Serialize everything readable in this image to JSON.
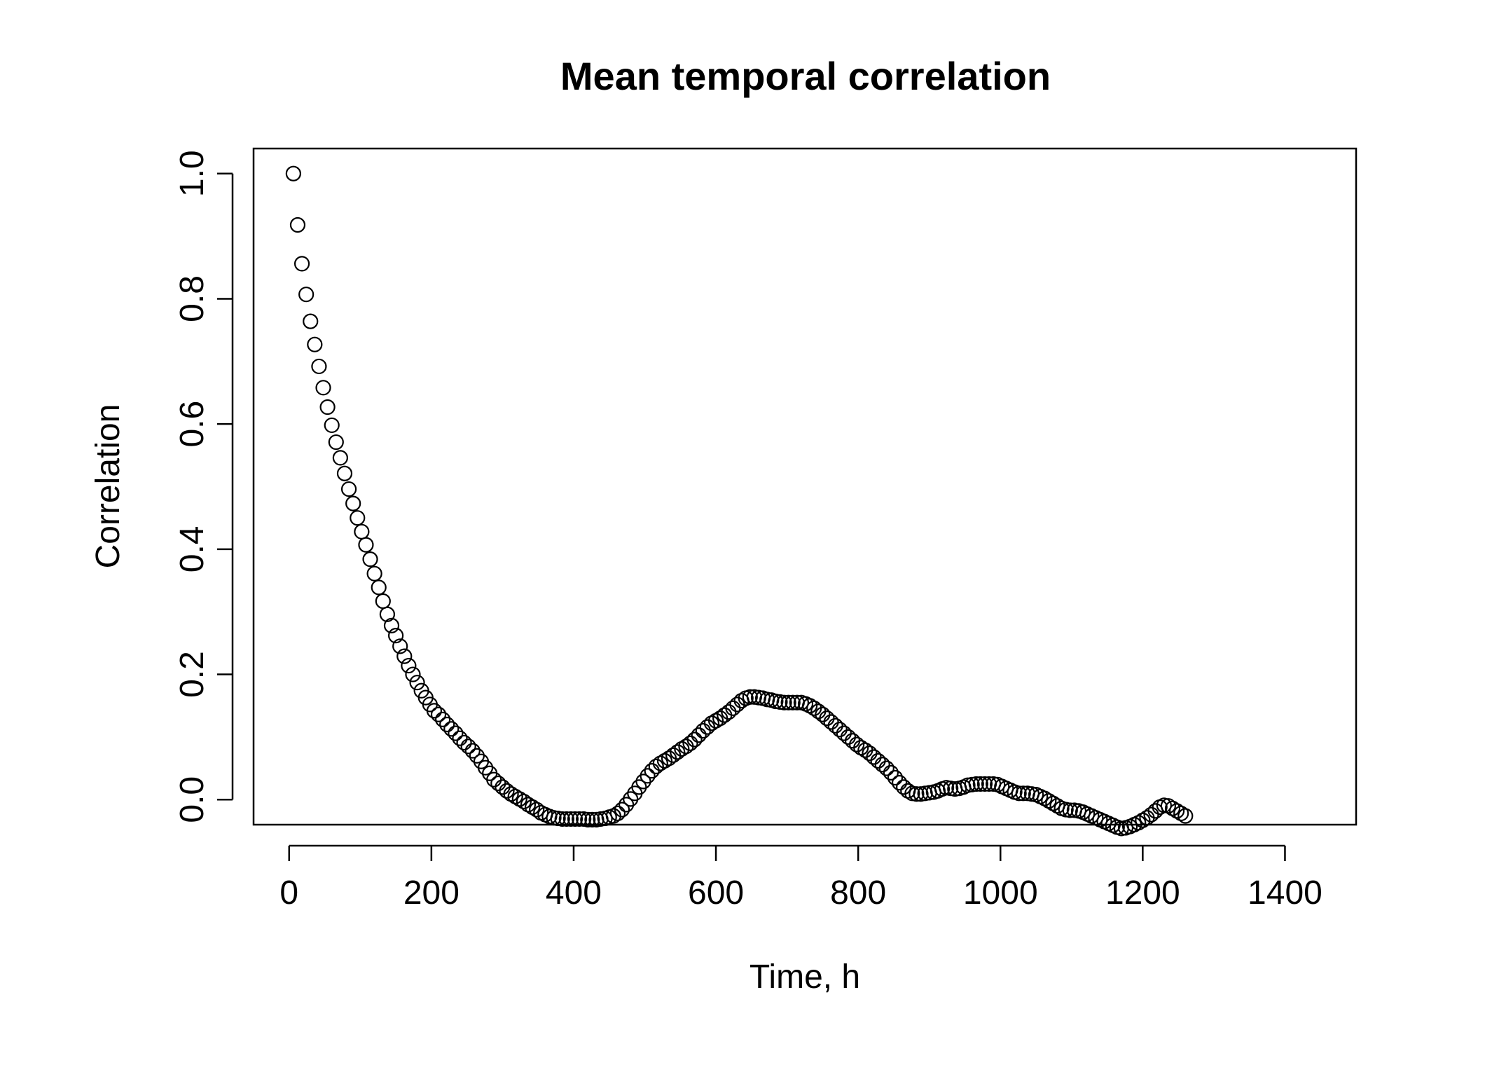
{
  "chart_data": {
    "type": "scatter",
    "title": "Mean temporal correlation",
    "xlabel": "Time, h",
    "ylabel": "Correlation",
    "xlim": [
      -50,
      1500
    ],
    "ylim": [
      -0.04,
      1.04
    ],
    "x_ticks": [
      0,
      200,
      400,
      600,
      800,
      1000,
      1200,
      1400
    ],
    "x_tick_labels": [
      "0",
      "200",
      "400",
      "600",
      "800",
      "1000",
      "1200",
      "1400"
    ],
    "y_ticks": [
      0.0,
      0.2,
      0.4,
      0.6,
      0.8,
      1.0
    ],
    "y_tick_labels": [
      "0.0",
      "0.2",
      "0.4",
      "0.6",
      "0.8",
      "1.0"
    ],
    "grid": false,
    "marker": "open-circle",
    "series": [
      {
        "x_start": 6,
        "x_step": 6,
        "values": [
          1.0,
          0.918,
          0.856,
          0.807,
          0.764,
          0.727,
          0.692,
          0.658,
          0.627,
          0.598,
          0.571,
          0.546,
          0.521,
          0.496,
          0.473,
          0.45,
          0.428,
          0.407,
          0.384,
          0.361,
          0.339,
          0.317,
          0.296,
          0.278,
          0.262,
          0.245,
          0.229,
          0.214,
          0.2,
          0.187,
          0.174,
          0.163,
          0.152,
          0.142,
          0.136,
          0.128,
          0.12,
          0.113,
          0.106,
          0.098,
          0.091,
          0.085,
          0.078,
          0.07,
          0.061,
          0.051,
          0.042,
          0.032,
          0.026,
          0.02,
          0.014,
          0.009,
          0.005,
          0.001,
          -0.003,
          -0.008,
          -0.012,
          -0.016,
          -0.021,
          -0.024,
          -0.027,
          -0.029,
          -0.03,
          -0.031,
          -0.031,
          -0.031,
          -0.031,
          -0.031,
          -0.031,
          -0.032,
          -0.032,
          -0.032,
          -0.031,
          -0.03,
          -0.028,
          -0.026,
          -0.022,
          -0.016,
          -0.008,
          0.001,
          0.01,
          0.02,
          0.029,
          0.038,
          0.046,
          0.053,
          0.058,
          0.062,
          0.066,
          0.071,
          0.076,
          0.081,
          0.085,
          0.09,
          0.096,
          0.103,
          0.11,
          0.116,
          0.122,
          0.126,
          0.13,
          0.135,
          0.14,
          0.146,
          0.152,
          0.158,
          0.162,
          0.164,
          0.164,
          0.163,
          0.162,
          0.16,
          0.159,
          0.157,
          0.156,
          0.155,
          0.155,
          0.155,
          0.155,
          0.155,
          0.153,
          0.15,
          0.146,
          0.141,
          0.136,
          0.13,
          0.124,
          0.118,
          0.112,
          0.106,
          0.1,
          0.094,
          0.088,
          0.083,
          0.079,
          0.074,
          0.068,
          0.062,
          0.056,
          0.05,
          0.043,
          0.035,
          0.027,
          0.02,
          0.014,
          0.01,
          0.009,
          0.009,
          0.01,
          0.011,
          0.012,
          0.014,
          0.017,
          0.019,
          0.018,
          0.017,
          0.018,
          0.02,
          0.023,
          0.024,
          0.025,
          0.025,
          0.025,
          0.025,
          0.025,
          0.024,
          0.021,
          0.018,
          0.015,
          0.012,
          0.01,
          0.01,
          0.01,
          0.009,
          0.008,
          0.005,
          0.002,
          -0.002,
          -0.006,
          -0.01,
          -0.014,
          -0.016,
          -0.017,
          -0.017,
          -0.018,
          -0.02,
          -0.023,
          -0.026,
          -0.029,
          -0.032,
          -0.035,
          -0.038,
          -0.041,
          -0.044,
          -0.046,
          -0.045,
          -0.043,
          -0.04,
          -0.037,
          -0.033,
          -0.029,
          -0.024,
          -0.018,
          -0.012,
          -0.009,
          -0.01,
          -0.014,
          -0.018,
          -0.022,
          -0.026
        ]
      }
    ]
  }
}
